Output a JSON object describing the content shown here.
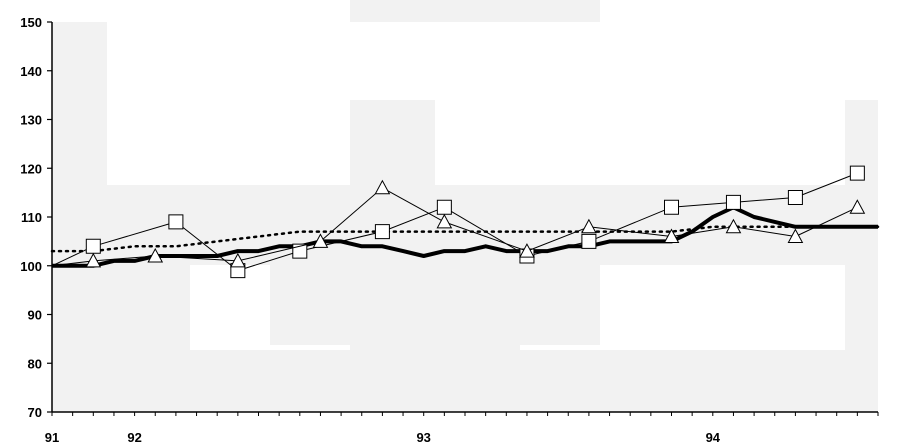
{
  "chart_data": {
    "type": "line",
    "title": "",
    "xlabel": "",
    "ylabel": "",
    "ylim": [
      70,
      150
    ],
    "yticks": [
      70,
      80,
      90,
      100,
      110,
      120,
      130,
      140,
      150
    ],
    "xlim": [
      0,
      40
    ],
    "xtick_labels": [
      {
        "x": 0,
        "label": "91"
      },
      {
        "x": 4,
        "label": "92"
      },
      {
        "x": 18,
        "label": "93"
      },
      {
        "x": 32,
        "label": "94"
      }
    ],
    "grid": false,
    "legend": "none",
    "series": [
      {
        "style": "thick-solid",
        "color": "#000000",
        "x": [
          0,
          1,
          2,
          3,
          4,
          5,
          6,
          7,
          8,
          9,
          10,
          11,
          12,
          13,
          14,
          15,
          16,
          17,
          18,
          19,
          20,
          21,
          22,
          23,
          24,
          25,
          26,
          27,
          28,
          29,
          30,
          31,
          32,
          33,
          34,
          35,
          36,
          37,
          38,
          39,
          40
        ],
        "y": [
          100,
          100,
          100,
          101,
          101,
          102,
          102,
          102,
          102,
          103,
          103,
          104,
          104,
          105,
          105,
          104,
          104,
          103,
          102,
          103,
          103,
          104,
          103,
          103,
          103,
          104,
          104,
          105,
          105,
          105,
          105,
          107,
          110,
          112,
          110,
          109,
          108,
          108,
          108,
          108,
          108
        ]
      },
      {
        "style": "dotted",
        "color": "#000000",
        "x": [
          0,
          2,
          4,
          6,
          8,
          10,
          12,
          14,
          16,
          18,
          20,
          22,
          24,
          26,
          28,
          30,
          32,
          34,
          36,
          38,
          40
        ],
        "y": [
          103,
          103,
          104,
          104,
          105,
          106,
          107,
          107,
          107,
          107,
          107,
          107,
          107,
          107,
          107,
          107,
          108,
          108,
          108,
          108,
          108
        ]
      },
      {
        "style": "thin-square-markers",
        "color": "#000000",
        "marker": "square",
        "x": [
          0,
          2,
          6,
          9,
          12,
          16,
          19,
          23,
          26,
          30,
          33,
          36,
          39
        ],
        "y": [
          100,
          104,
          109,
          99,
          103,
          107,
          112,
          102,
          105,
          112,
          113,
          114,
          119
        ]
      },
      {
        "style": "thin-triangle-markers",
        "color": "#000000",
        "marker": "triangle",
        "x": [
          0,
          2,
          5,
          9,
          13,
          16,
          19,
          23,
          26,
          30,
          33,
          36,
          39
        ],
        "y": [
          100,
          101,
          102,
          101,
          105,
          116,
          109,
          103,
          108,
          106,
          108,
          106,
          112
        ]
      }
    ]
  },
  "colors": {
    "background": "#ffffff",
    "shade": "#f2f2f2",
    "axis": "#000000"
  }
}
